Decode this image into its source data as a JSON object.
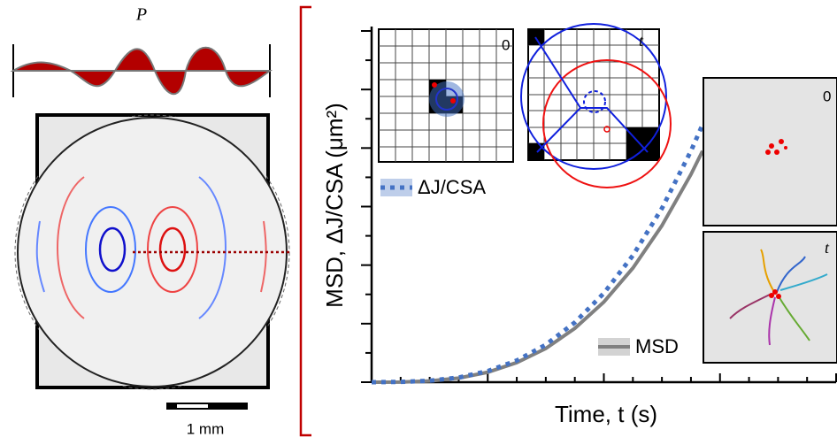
{
  "panel_a": {
    "wave_label": "P",
    "scale_bar": "1 mm"
  },
  "insets": {
    "grid_0": "0",
    "grid_t": "t",
    "photo_0": "0",
    "photo_t": "t"
  },
  "chart_data": {
    "type": "line",
    "y_label": "MSD, ΔJ/CSA (μm²)",
    "x_label": "Time, t (s)",
    "x": [
      0,
      1,
      2,
      3,
      4,
      5,
      6,
      7,
      8,
      9,
      10,
      11,
      11.4
    ],
    "series": [
      {
        "name": "ΔJ/CSA",
        "color": "#4472c4",
        "values": [
          0,
          0.01,
          0.05,
          0.16,
          0.38,
          0.74,
          1.28,
          2.04,
          3.04,
          4.33,
          5.94,
          7.9,
          8.8
        ]
      },
      {
        "name": "MSD",
        "color": "#808080",
        "values": [
          0,
          0.005,
          0.04,
          0.14,
          0.34,
          0.67,
          1.15,
          1.84,
          2.74,
          3.9,
          5.35,
          7.1,
          7.9
        ]
      }
    ],
    "xlim": [
      0,
      16
    ],
    "ylim": [
      0,
      12
    ],
    "xticks": [
      0,
      1,
      2,
      3,
      4,
      5,
      6,
      7,
      8,
      9,
      10,
      11,
      12,
      13,
      14,
      15,
      16
    ],
    "yticks": [
      0,
      1,
      2,
      3,
      4,
      5,
      6,
      7,
      8,
      9,
      10,
      11,
      12
    ]
  }
}
